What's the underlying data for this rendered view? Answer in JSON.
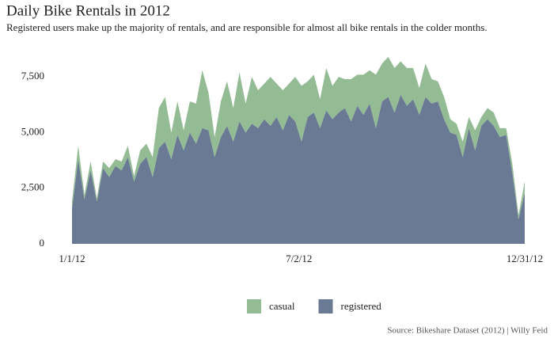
{
  "chart_data": {
    "type": "stacked_area",
    "title": "Daily Bike Rentals in 2012",
    "subtitle": "Registered users make up the majority of rentals, and are responsible for almost all bike rentals in the colder months.",
    "source": "Source: Bikeshare Dataset (2012) | Willy Feid",
    "x": [
      "1/1/12",
      "1/6/12",
      "1/11/12",
      "1/16/12",
      "1/21/12",
      "1/26/12",
      "1/31/12",
      "2/5/12",
      "2/10/12",
      "2/15/12",
      "2/20/12",
      "2/25/12",
      "3/1/12",
      "3/6/12",
      "3/11/12",
      "3/16/12",
      "3/21/12",
      "3/26/12",
      "3/31/12",
      "4/5/12",
      "4/10/12",
      "4/15/12",
      "4/20/12",
      "4/25/12",
      "4/30/12",
      "5/5/12",
      "5/10/12",
      "5/15/12",
      "5/20/12",
      "5/25/12",
      "5/30/12",
      "6/4/12",
      "6/9/12",
      "6/14/12",
      "6/19/12",
      "6/24/12",
      "6/29/12",
      "7/4/12",
      "7/9/12",
      "7/14/12",
      "7/19/12",
      "7/24/12",
      "7/29/12",
      "8/3/12",
      "8/8/12",
      "8/13/12",
      "8/18/12",
      "8/23/12",
      "8/28/12",
      "9/2/12",
      "9/7/12",
      "9/12/12",
      "9/17/12",
      "9/22/12",
      "9/27/12",
      "10/2/12",
      "10/7/12",
      "10/12/12",
      "10/17/12",
      "10/22/12",
      "10/27/12",
      "11/1/12",
      "11/6/12",
      "11/11/12",
      "11/16/12",
      "11/21/12",
      "11/26/12",
      "12/1/12",
      "12/6/12",
      "12/11/12",
      "12/16/12",
      "12/21/12",
      "12/26/12",
      "12/31/12"
    ],
    "series": [
      {
        "name": "casual",
        "color": "#93bb94",
        "values": [
          300,
          600,
          200,
          400,
          150,
          300,
          400,
          300,
          400,
          500,
          250,
          600,
          600,
          900,
          1800,
          2000,
          1200,
          1500,
          900,
          1400,
          1800,
          2600,
          1700,
          900,
          1600,
          2000,
          1500,
          2200,
          1300,
          2100,
          1700,
          1600,
          2200,
          1500,
          1800,
          1400,
          2000,
          2500,
          1600,
          1700,
          1300,
          1900,
          1500,
          1600,
          1300,
          1900,
          1400,
          1800,
          1500,
          2400,
          1700,
          1800,
          2000,
          1500,
          1700,
          1400,
          1200,
          1500,
          1100,
          900,
          1000,
          600,
          500,
          700,
          500,
          900,
          400,
          500,
          600,
          400,
          300,
          400,
          200,
          500
        ]
      },
      {
        "name": "registered",
        "color": "#6a7a94",
        "values": [
          1600,
          3800,
          2000,
          3300,
          1900,
          3400,
          3000,
          3500,
          3300,
          3900,
          2800,
          3600,
          3900,
          3000,
          4300,
          4600,
          3800,
          4900,
          4200,
          5000,
          4500,
          5200,
          5100,
          3900,
          4800,
          5300,
          4600,
          5500,
          5000,
          5400,
          5200,
          5600,
          5300,
          5700,
          5100,
          5800,
          5500,
          4600,
          5700,
          5900,
          5200,
          6000,
          5600,
          5900,
          6100,
          5500,
          6200,
          5800,
          6300,
          5200,
          6400,
          6600,
          5900,
          6700,
          6200,
          6500,
          5800,
          6600,
          6300,
          6400,
          5600,
          5000,
          4900,
          3900,
          5200,
          4200,
          5300,
          5600,
          5300,
          4800,
          4900,
          3200,
          1100,
          2300
        ]
      }
    ],
    "ylim": [
      0,
      9000
    ],
    "yticks": [
      0,
      {
        "value": 2500,
        "label": "2,500"
      },
      {
        "value": 5000,
        "label": "5,000"
      },
      {
        "value": 7500,
        "label": "7,500"
      }
    ],
    "xticks": [
      "1/1/12",
      "7/2/12",
      "12/31/12"
    ],
    "legend": "bottom"
  }
}
